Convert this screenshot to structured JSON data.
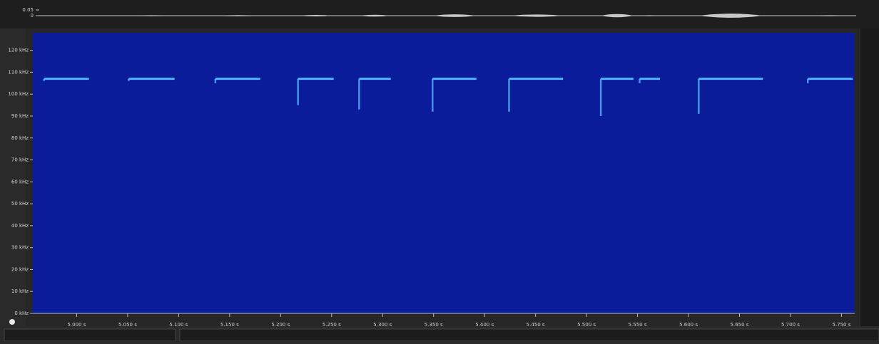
{
  "chart_data": {
    "type": "spectrogram",
    "background": "#0b1c9a",
    "color": "#4fb3ff",
    "xlim": [
      4.957,
      5.763
    ],
    "xticks": [
      {
        "value": 5.0,
        "label": "5.000 s"
      },
      {
        "value": 5.05,
        "label": "5.050 s"
      },
      {
        "value": 5.1,
        "label": "5.100 s"
      },
      {
        "value": 5.15,
        "label": "5.150 s"
      },
      {
        "value": 5.2,
        "label": "5.200 s"
      },
      {
        "value": 5.25,
        "label": "5.250 s"
      },
      {
        "value": 5.3,
        "label": "5.300 s"
      },
      {
        "value": 5.35,
        "label": "5.350 s"
      },
      {
        "value": 5.4,
        "label": "5.400 s"
      },
      {
        "value": 5.45,
        "label": "5.450 s"
      },
      {
        "value": 5.5,
        "label": "5.500 s"
      },
      {
        "value": 5.55,
        "label": "5.550 s"
      },
      {
        "value": 5.6,
        "label": "5.600 s"
      },
      {
        "value": 5.65,
        "label": "5.650 s"
      },
      {
        "value": 5.7,
        "label": "5.700 s"
      },
      {
        "value": 5.75,
        "label": "5.750 s"
      }
    ],
    "ylim": [
      0,
      128
    ],
    "yticks": [
      {
        "value": 0,
        "label": "0 kHz"
      },
      {
        "value": 10,
        "label": "10 kHz"
      },
      {
        "value": 20,
        "label": "20 kHz"
      },
      {
        "value": 30,
        "label": "30 kHz"
      },
      {
        "value": 40,
        "label": "40 kHz"
      },
      {
        "value": 50,
        "label": "50 kHz"
      },
      {
        "value": 60,
        "label": "60 kHz"
      },
      {
        "value": 70,
        "label": "70 kHz"
      },
      {
        "value": 80,
        "label": "80 kHz"
      },
      {
        "value": 90,
        "label": "90 kHz"
      },
      {
        "value": 100,
        "label": "100 kHz"
      },
      {
        "value": 110,
        "label": "110 kHz"
      },
      {
        "value": 120,
        "label": "120 kHz"
      }
    ],
    "calls": {
      "start": [
        4.968,
        5.051,
        5.136,
        5.217,
        5.277,
        5.349,
        5.424,
        5.514,
        5.552,
        5.61,
        5.717
      ],
      "end": [
        5.012,
        5.096,
        5.18,
        5.252,
        5.308,
        5.392,
        5.477,
        5.546,
        5.572,
        5.673,
        5.761
      ],
      "freq": [
        107,
        107,
        107,
        107,
        107,
        107,
        107,
        107,
        107,
        107,
        107
      ],
      "low": [
        106,
        106,
        105,
        95,
        93,
        92,
        92,
        90,
        105,
        91,
        105
      ]
    },
    "waveform": {
      "ylim": [
        -0.075,
        0.0875
      ],
      "yticks": [
        0.05,
        0
      ],
      "color": "#c8c8c8",
      "amplitudes": [
        0.003,
        0.004,
        0.005,
        0.006,
        0.008,
        0.012,
        0.01,
        0.014,
        0.004,
        0.018,
        0.004
      ]
    }
  }
}
